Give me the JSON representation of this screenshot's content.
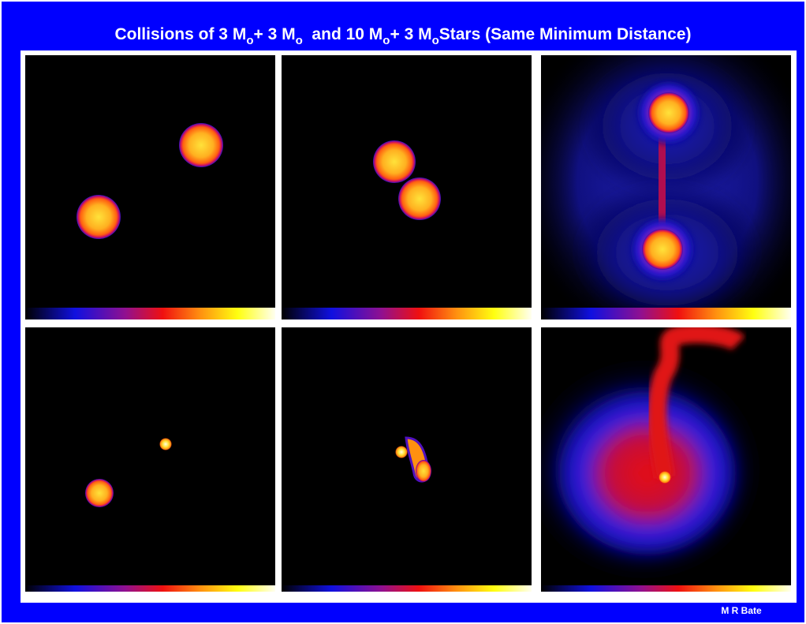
{
  "title": [
    {
      "text": "Collisions of 3 M",
      "sub": false
    },
    {
      "text": "o",
      "sub": true
    },
    {
      "text": "+ 3 M",
      "sub": false
    },
    {
      "text": "o",
      "sub": true
    },
    {
      "text": "  and 10 M",
      "sub": false
    },
    {
      "text": "o",
      "sub": true
    },
    {
      "text": "+ 3 M",
      "sub": false
    },
    {
      "text": "o",
      "sub": true
    },
    {
      "text": "Stars (Same Minimum Distance)",
      "sub": false
    }
  ],
  "credit": "M R Bate"
}
